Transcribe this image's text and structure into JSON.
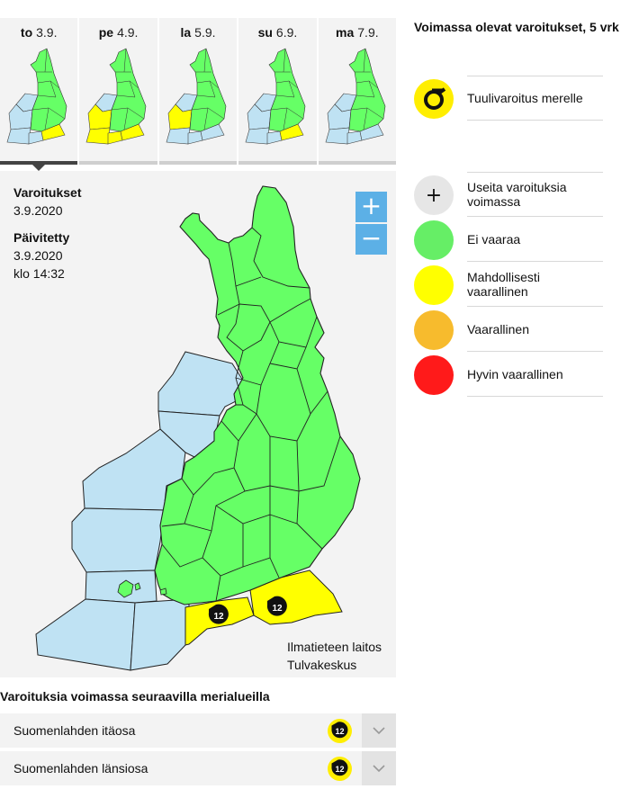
{
  "days": [
    {
      "weekday": "to",
      "date": "3.9.",
      "active": true,
      "west": "#bfe2f3",
      "sw": "#bfe2f3",
      "gulfw": "#bfe2f3",
      "gulfe": "#ffff00"
    },
    {
      "weekday": "pe",
      "date": "4.9.",
      "active": false,
      "west": "#ffff00",
      "sw": "#ffff00",
      "gulfw": "#ffff00",
      "gulfe": "#ffff00"
    },
    {
      "weekday": "la",
      "date": "5.9.",
      "active": false,
      "west": "#ffff00",
      "sw": "#bfe2f3",
      "gulfw": "#bfe2f3",
      "gulfe": "#bfe2f3"
    },
    {
      "weekday": "su",
      "date": "6.9.",
      "active": false,
      "west": "#bfe2f3",
      "sw": "#bfe2f3",
      "gulfw": "#bfe2f3",
      "gulfe": "#ffff00"
    },
    {
      "weekday": "ma",
      "date": "7.9.",
      "active": false,
      "west": "#bfe2f3",
      "sw": "#bfe2f3",
      "gulfw": "#bfe2f3",
      "gulfe": "#bfe2f3"
    }
  ],
  "info": {
    "warnings_label": "Varoitukset",
    "warnings_date": "3.9.2020",
    "updated_label": "Päivitetty",
    "updated_date": "3.9.2020",
    "updated_time": "klo 14:32"
  },
  "zoom": {
    "in": "+",
    "out": "−"
  },
  "credit": {
    "line1": "Ilmatieteen laitos",
    "line2": "Tulvakeskus"
  },
  "map": {
    "badges": [
      {
        "value": "12"
      },
      {
        "value": "12"
      }
    ],
    "colors": {
      "land": "#66ff66",
      "sea": "#bfe2f3",
      "warning": "#ffff00",
      "border": "#222222"
    }
  },
  "sea_section": {
    "title": "Varoituksia voimassa seuraavilla merialueilla",
    "rows": [
      {
        "name": "Suomenlahden itäosa",
        "badge": "12"
      },
      {
        "name": "Suomenlahden länsiosa",
        "badge": "12"
      }
    ]
  },
  "legend": {
    "title": "Voimassa olevat varoitukset, 5 vrk",
    "warning_types": [
      {
        "label": "Tuulivaroitus merelle",
        "icon": "wind-warning-sea-icon",
        "color": "#ffee00"
      }
    ],
    "levels": [
      {
        "label": "Useita varoituksia voimassa",
        "symbol": "+",
        "color": "#e6e6e6"
      },
      {
        "label": "Ei vaaraa",
        "color": "#66ee66"
      },
      {
        "label": "Mahdollisesti vaarallinen",
        "color": "#ffff00"
      },
      {
        "label": "Vaarallinen",
        "color": "#f7bb2d"
      },
      {
        "label": "Hyvin vaarallinen",
        "color": "#ff1a1a"
      }
    ]
  }
}
